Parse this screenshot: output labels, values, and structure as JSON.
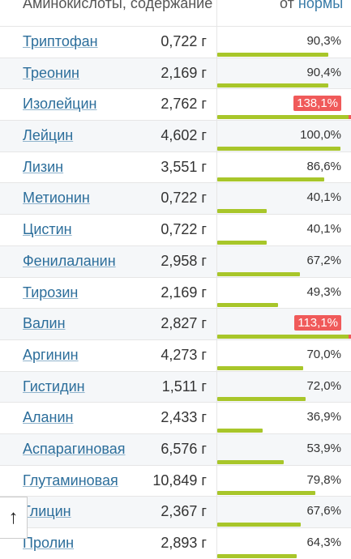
{
  "header": {
    "title": "Аминокислоты, содержание",
    "norm_prefix": "от",
    "norm_link": "нормы"
  },
  "rows": [
    {
      "name": "Триптофан",
      "amount": "0,722 г",
      "percent_label": "90,3%",
      "percent": 90.3
    },
    {
      "name": "Треонин",
      "amount": "2,169 г",
      "percent_label": "90,4%",
      "percent": 90.4
    },
    {
      "name": "Изолейцин",
      "amount": "2,762 г",
      "percent_label": "138,1%",
      "percent": 138.1
    },
    {
      "name": "Лейцин",
      "amount": "4,602 г",
      "percent_label": "100,0%",
      "percent": 100.0
    },
    {
      "name": "Лизин",
      "amount": "3,551 г",
      "percent_label": "86,6%",
      "percent": 86.6
    },
    {
      "name": "Метионин",
      "amount": "0,722 г",
      "percent_label": "40,1%",
      "percent": 40.1
    },
    {
      "name": "Цистин",
      "amount": "0,722 г",
      "percent_label": "40,1%",
      "percent": 40.1
    },
    {
      "name": "Фенилаланин",
      "amount": "2,958 г",
      "percent_label": "67,2%",
      "percent": 67.2
    },
    {
      "name": "Тирозин",
      "amount": "2,169 г",
      "percent_label": "49,3%",
      "percent": 49.3
    },
    {
      "name": "Валин",
      "amount": "2,827 г",
      "percent_label": "113,1%",
      "percent": 113.1
    },
    {
      "name": "Аргинин",
      "amount": "4,273 г",
      "percent_label": "70,0%",
      "percent": 70.0
    },
    {
      "name": "Гистидин",
      "amount": "1,511 г",
      "percent_label": "72,0%",
      "percent": 72.0
    },
    {
      "name": "Аланин",
      "amount": "2,433 г",
      "percent_label": "36,9%",
      "percent": 36.9
    },
    {
      "name": "Аспарагиновая",
      "amount": "6,576 г",
      "percent_label": "53,9%",
      "percent": 53.9
    },
    {
      "name": "Глутаминовая",
      "amount": "10,849 г",
      "percent_label": "79,8%",
      "percent": 79.8
    },
    {
      "name": "Глицин",
      "amount": "2,367 г",
      "percent_label": "67,6%",
      "percent": 67.6
    },
    {
      "name": "Пролин",
      "amount": "2,893 г",
      "percent_label": "64,3%",
      "percent": 64.3
    }
  ],
  "scroll_button": {
    "icon": "arrow-up-icon",
    "glyph": "↑"
  },
  "colors": {
    "link": "#2c6e9b",
    "bar": "#a8c62a",
    "over": "#f05a5a"
  }
}
